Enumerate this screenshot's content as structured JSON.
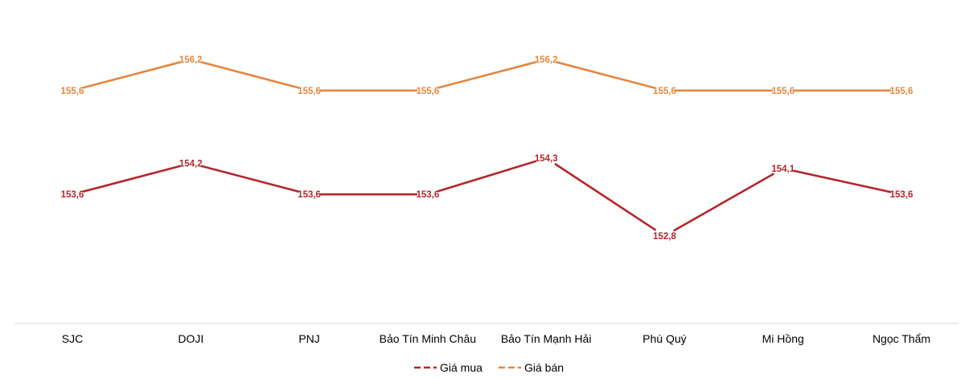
{
  "chart_data": {
    "type": "line",
    "title": "",
    "xlabel": "",
    "ylabel": "",
    "categories": [
      "SJC",
      "DOJI",
      "PNJ",
      "Bảo Tín Minh Châu",
      "Bảo Tín Mạnh Hải",
      "Phú Quý",
      "Mi Hồng",
      "Ngọc Thẩm"
    ],
    "series": [
      {
        "name": "Giá mua",
        "color": "#b5262a",
        "values": [
          153.6,
          154.2,
          153.6,
          153.6,
          154.3,
          152.8,
          154.1,
          153.6
        ],
        "labels": [
          "153,6",
          "154,2",
          "153,6",
          "153,6",
          "154,3",
          "152,8",
          "154,1",
          "153,6"
        ]
      },
      {
        "name": "Giá bán",
        "color": "#e4873f",
        "values": [
          155.6,
          156.2,
          155.6,
          155.6,
          156.2,
          155.6,
          155.6,
          155.6
        ],
        "labels": [
          "155,6",
          "156,2",
          "155,6",
          "155,6",
          "156,2",
          "155,6",
          "155,6",
          "155,6"
        ]
      }
    ],
    "ylim": [
      151.0,
      157.0
    ],
    "grid": false,
    "legend": "bottom"
  }
}
